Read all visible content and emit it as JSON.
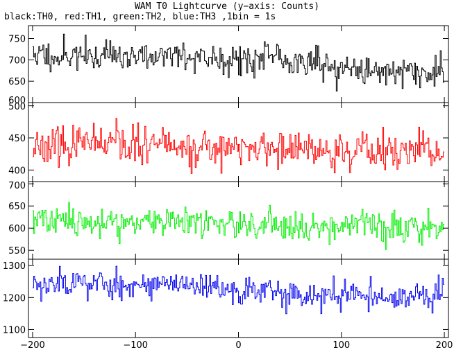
{
  "title": "WAM T0 Lightcurve (y−axis: Counts)",
  "subtitle": "black:TH0, red:TH1, green:TH2, blue:TH3 ,1bin = 1s",
  "chart_data": {
    "type": "line",
    "x_range": [
      -204,
      204
    ],
    "x_ticks": [
      -200,
      -100,
      0,
      100,
      200
    ],
    "x_tick_labels": [
      "−200",
      "−100",
      "0",
      "100",
      "200"
    ],
    "bin_seconds": 1,
    "panels": [
      {
        "name": "TH0",
        "color": "#000000",
        "ylim": [
          600,
          780
        ],
        "y_ticks": [
          600,
          650,
          700,
          750
        ],
        "mean_levels": [
          {
            "x": -200,
            "y": 712
          },
          {
            "x": 0,
            "y": 705
          },
          {
            "x": 75,
            "y": 698
          },
          {
            "x": 90,
            "y": 680
          },
          {
            "x": 200,
            "y": 668
          }
        ],
        "noise_sd": 27,
        "seed": 11
      },
      {
        "name": "TH1",
        "color": "#ff0000",
        "ylim": [
          382,
          505
        ],
        "y_ticks": [
          400,
          450,
          500
        ],
        "mean_levels": [
          {
            "x": -200,
            "y": 440
          },
          {
            "x": 0,
            "y": 434
          },
          {
            "x": 200,
            "y": 426
          }
        ],
        "noise_sd": 21,
        "seed": 23
      },
      {
        "name": "TH2",
        "color": "#00ee00",
        "ylim": [
          530,
          705
        ],
        "y_ticks": [
          550,
          600,
          650,
          700
        ],
        "mean_levels": [
          {
            "x": -200,
            "y": 618
          },
          {
            "x": 0,
            "y": 610
          },
          {
            "x": 200,
            "y": 603
          }
        ],
        "noise_sd": 25,
        "seed": 37
      },
      {
        "name": "TH3",
        "color": "#0000ee",
        "ylim": [
          1075,
          1320
        ],
        "y_ticks": [
          1100,
          1200,
          1300
        ],
        "mean_levels": [
          {
            "x": -200,
            "y": 1248
          },
          {
            "x": -80,
            "y": 1240
          },
          {
            "x": 0,
            "y": 1220
          },
          {
            "x": 200,
            "y": 1198
          }
        ],
        "noise_sd": 34,
        "seed": 53
      }
    ]
  }
}
